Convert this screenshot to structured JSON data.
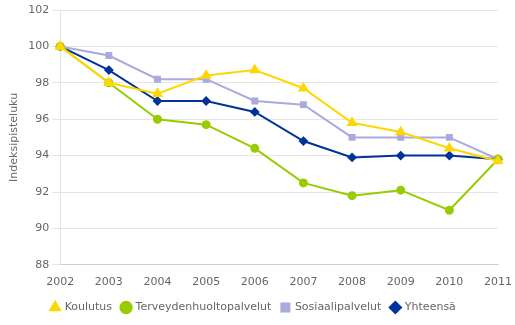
{
  "chart_data": {
    "type": "line",
    "categories": [
      "2002",
      "2003",
      "2004",
      "2005",
      "2006",
      "2007",
      "2008",
      "2009",
      "2010",
      "2011"
    ],
    "series": [
      {
        "name": "Koulutus",
        "color": "#FFD700",
        "marker": "triangle",
        "values": [
          100.0,
          98.0,
          97.4,
          98.4,
          98.7,
          97.7,
          95.8,
          95.3,
          94.4,
          93.7
        ]
      },
      {
        "name": "Terveydenhuoltopalvelut",
        "color": "#99CC00",
        "marker": "circle",
        "values": [
          100.0,
          98.0,
          96.0,
          95.7,
          94.4,
          92.5,
          91.8,
          92.1,
          91.0,
          93.8
        ]
      },
      {
        "name": "Sosiaalipalvelut",
        "color": "#AAAADD",
        "marker": "square",
        "values": [
          100.0,
          99.5,
          98.2,
          98.2,
          97.0,
          96.8,
          95.0,
          95.0,
          95.0,
          93.8
        ]
      },
      {
        "name": "Yhteensä",
        "color": "#003399",
        "marker": "diamond",
        "values": [
          100.0,
          98.7,
          97.0,
          97.0,
          96.4,
          94.8,
          93.9,
          94.0,
          94.0,
          93.8
        ]
      }
    ],
    "ylabel": "Indeksipisteluku",
    "ylim": [
      88,
      102
    ],
    "yticks": [
      88,
      90,
      92,
      94,
      96,
      98,
      100,
      102
    ],
    "grid": true,
    "legend": "bottom"
  }
}
